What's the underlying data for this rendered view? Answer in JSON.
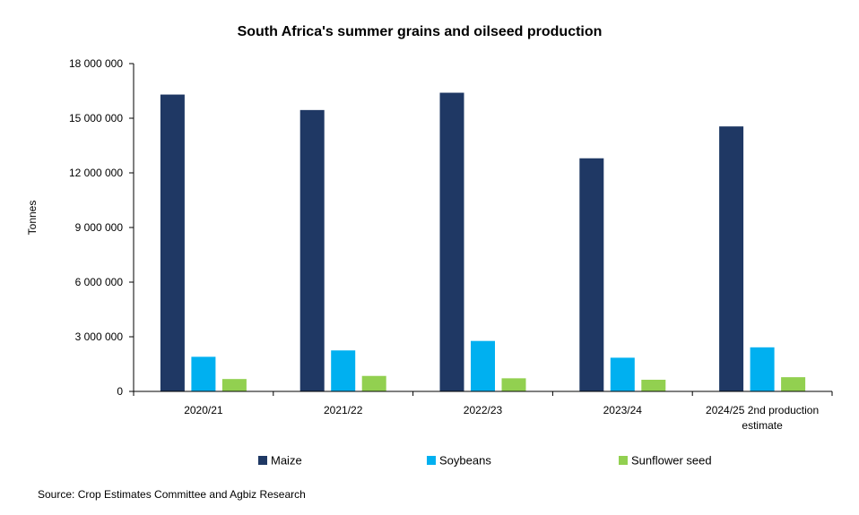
{
  "chart_data": {
    "type": "bar",
    "title": "South Africa's summer grains and oilseed production",
    "ylabel": "Tonnes",
    "xlabel": "",
    "ylim": [
      0,
      18000000
    ],
    "yticks": [
      0,
      3000000,
      6000000,
      9000000,
      12000000,
      15000000,
      18000000
    ],
    "ytick_labels": [
      "0",
      "3 000 000",
      "6 000 000",
      "9 000 000",
      "12 000 000",
      "15 000 000",
      "18 000 000"
    ],
    "categories": [
      [
        "2020/21"
      ],
      [
        "2021/22"
      ],
      [
        "2022/23"
      ],
      [
        "2023/24"
      ],
      [
        "2024/25 2nd production",
        "estimate"
      ]
    ],
    "series": [
      {
        "name": "Maize",
        "color": "#1f3864",
        "values": [
          16300000,
          15450000,
          16400000,
          12800000,
          14550000
        ]
      },
      {
        "name": "Soybeans",
        "color": "#00b0f0",
        "values": [
          1900000,
          2250000,
          2770000,
          1850000,
          2420000
        ]
      },
      {
        "name": "Sunflower seed",
        "color": "#92d050",
        "values": [
          680000,
          850000,
          720000,
          640000,
          780000
        ]
      }
    ],
    "grid": false,
    "legend_position": "bottom"
  },
  "source": "Source: Crop Estimates Committee and Agbiz Research"
}
